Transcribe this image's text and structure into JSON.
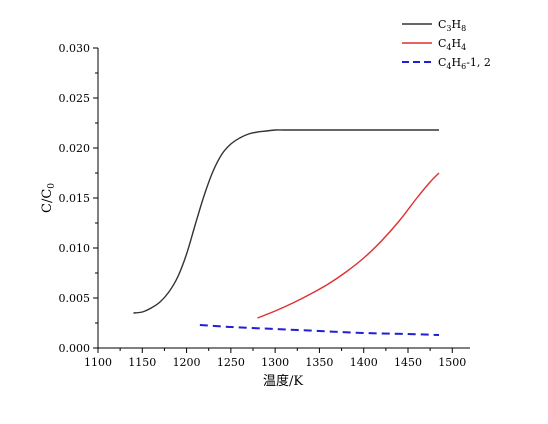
{
  "chart_data": {
    "type": "line",
    "xlabel": "温度/K",
    "ylabel": "C/C0",
    "ylabel_parts": {
      "main": "C/C",
      "sub": "0"
    },
    "xlim": [
      1100,
      1520
    ],
    "ylim": [
      0,
      0.03
    ],
    "x_ticks": [
      1100,
      1150,
      1200,
      1250,
      1300,
      1350,
      1400,
      1450,
      1500
    ],
    "x_tick_labels": [
      "1100",
      "1150",
      "1200",
      "1250",
      "1300",
      "1350",
      "1400",
      "1450",
      "1500"
    ],
    "y_ticks": [
      0,
      0.005,
      0.01,
      0.015,
      0.02,
      0.025,
      0.03
    ],
    "y_tick_labels": [
      "0.000",
      "0.005",
      "0.010",
      "0.015",
      "0.020",
      "0.025",
      "0.030"
    ],
    "grid": false,
    "legend_position": "top-right",
    "series": [
      {
        "name": "C3H8",
        "legend": [
          {
            "t": "C",
            "sub": false
          },
          {
            "t": "3",
            "sub": true
          },
          {
            "t": "H",
            "sub": false
          },
          {
            "t": "8",
            "sub": true
          }
        ],
        "color": "#333333",
        "dash": "solid",
        "x": [
          1140,
          1150,
          1160,
          1170,
          1180,
          1190,
          1200,
          1210,
          1220,
          1230,
          1240,
          1250,
          1260,
          1270,
          1280,
          1290,
          1300,
          1310,
          1320,
          1340,
          1360,
          1400,
          1450,
          1485
        ],
        "y": [
          0.0035,
          0.0036,
          0.004,
          0.0046,
          0.0056,
          0.0071,
          0.0094,
          0.0124,
          0.0153,
          0.0177,
          0.0194,
          0.0204,
          0.021,
          0.0214,
          0.0216,
          0.0217,
          0.0218,
          0.0218,
          0.0218,
          0.0218,
          0.0218,
          0.0218,
          0.0218,
          0.0218
        ]
      },
      {
        "name": "C4H4",
        "legend": [
          {
            "t": "C",
            "sub": false
          },
          {
            "t": "4",
            "sub": true
          },
          {
            "t": "H",
            "sub": false
          },
          {
            "t": "4",
            "sub": true
          }
        ],
        "color": "#e03030",
        "dash": "solid",
        "x": [
          1280,
          1300,
          1320,
          1340,
          1360,
          1380,
          1400,
          1420,
          1440,
          1460,
          1475,
          1485
        ],
        "y": [
          0.003,
          0.0037,
          0.0045,
          0.0054,
          0.0064,
          0.0076,
          0.009,
          0.0107,
          0.0127,
          0.015,
          0.0166,
          0.0175
        ]
      },
      {
        "name": "C4H6-1, 2",
        "legend": [
          {
            "t": "C",
            "sub": false
          },
          {
            "t": "4",
            "sub": true
          },
          {
            "t": "H",
            "sub": false
          },
          {
            "t": "6",
            "sub": true
          },
          {
            "t": "-1, 2",
            "sub": false
          }
        ],
        "color": "#1f1fd6",
        "dash": "dashed",
        "x": [
          1215,
          1250,
          1300,
          1350,
          1400,
          1450,
          1485
        ],
        "y": [
          0.0023,
          0.0021,
          0.0019,
          0.0017,
          0.0015,
          0.0014,
          0.0013
        ]
      }
    ]
  }
}
